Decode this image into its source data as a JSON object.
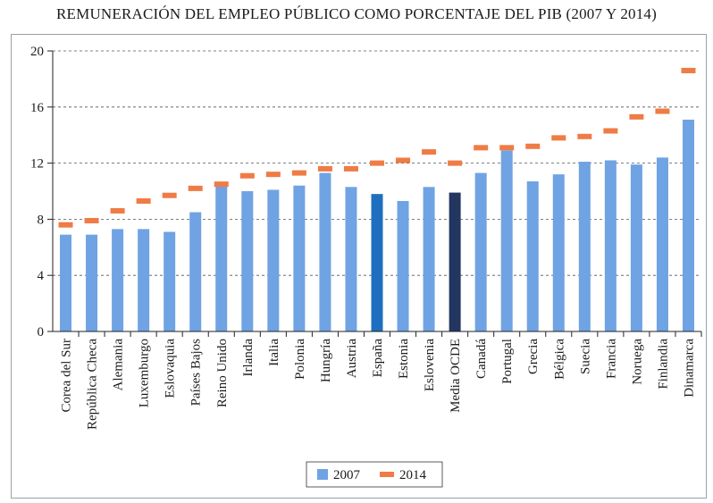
{
  "chart_data": {
    "type": "bar",
    "title": "REMUNERACIÓN DEL EMPLEO PÚBLICO COMO PORCENTAJE DEL PIB (2007 Y 2014)",
    "xlabel": "",
    "ylabel": "",
    "ylim": [
      0,
      20
    ],
    "yticks": [
      0,
      4,
      8,
      12,
      16,
      20
    ],
    "grid": "horizontal dashed",
    "legend": "bottom-center",
    "categories": [
      "Corea del Sur",
      "República Checa",
      "Alemania",
      "Luxemburgo",
      "Eslovaquia",
      "Países Bajos",
      "Reino Unido",
      "Irlanda",
      "Italia",
      "Polonia",
      "Hungría",
      "Austria",
      "España",
      "Estonia",
      "Eslovenia",
      "Media OCDE",
      "Canadá",
      "Portugal",
      "Grecia",
      "Bélgica",
      "Suecia",
      "Francia",
      "Noruega",
      "Finlandia",
      "Dinamarca"
    ],
    "series": [
      {
        "name": "2007",
        "style": "bar",
        "color": "#6fa3e3",
        "highlight": {
          "España": "#1f6fc1",
          "Media OCDE": "#23365f"
        },
        "values": [
          6.9,
          6.9,
          7.3,
          7.3,
          7.1,
          8.5,
          10.4,
          10.0,
          10.1,
          10.4,
          11.3,
          10.3,
          9.8,
          9.3,
          10.3,
          9.9,
          11.3,
          12.9,
          10.7,
          11.2,
          12.1,
          12.2,
          11.9,
          12.4,
          15.1
        ]
      },
      {
        "name": "2014",
        "style": "dash-marker",
        "color": "#ef7b45",
        "values": [
          7.6,
          7.9,
          8.6,
          9.3,
          9.7,
          10.2,
          10.5,
          11.1,
          11.2,
          11.3,
          11.6,
          11.6,
          12.0,
          12.2,
          12.8,
          12.0,
          13.1,
          13.1,
          13.2,
          13.8,
          13.9,
          14.3,
          15.3,
          15.7,
          18.6
        ]
      }
    ]
  }
}
